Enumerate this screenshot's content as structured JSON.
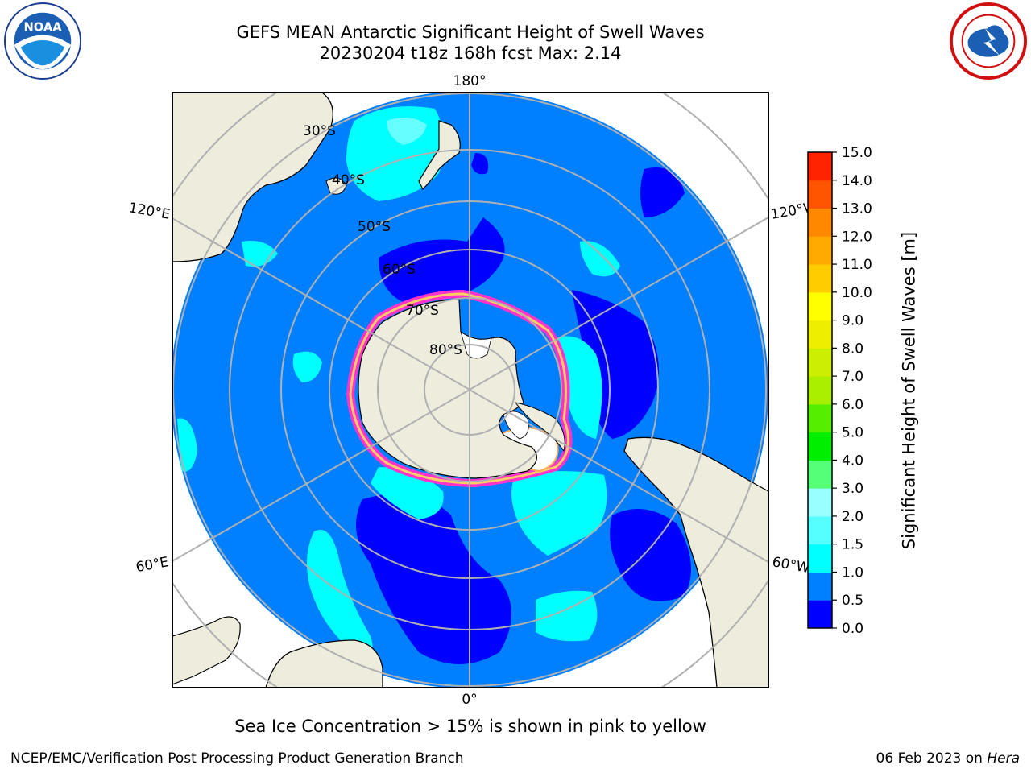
{
  "title": {
    "line1": "GEFS MEAN Antarctic Significant Height of Swell Waves",
    "line2": "20230204 t18z 168h fcst   Max: 2.14"
  },
  "logos": {
    "noaa": {
      "icon": "noaa-logo-icon",
      "text": "NOAA"
    },
    "nws": {
      "icon": "nws-logo-icon"
    }
  },
  "map": {
    "projection": "south-polar-stereographic",
    "longitude_labels": {
      "top": "180°",
      "upper_left": "120°E",
      "upper_right": "120°W",
      "lower_left": "60°E",
      "lower_right": "60°W",
      "bottom": "0°"
    },
    "latitude_labels": [
      "30°S",
      "40°S",
      "50°S",
      "60°S",
      "70°S",
      "80°S"
    ],
    "colors": {
      "land": "#eeecdc",
      "ocean_main": "#0080ff",
      "ocean_low": "#0000ff",
      "ocean_mid": "#00ffff",
      "ice_pink": "#ff33cc",
      "ice_yellow": "#ffff00",
      "grid": "#b0b0b0"
    }
  },
  "colorbar": {
    "label": "Significant Height of Swell Waves [m]",
    "ticks": [
      "0.0",
      "0.5",
      "1.0",
      "1.5",
      "2.0",
      "3.0",
      "4.0",
      "5.0",
      "6.0",
      "7.0",
      "8.0",
      "9.0",
      "10.0",
      "11.0",
      "12.0",
      "13.0",
      "14.0",
      "15.0"
    ],
    "colors": [
      "#0000ff",
      "#0080ff",
      "#00ffff",
      "#55ffff",
      "#99ffff",
      "#55ff77",
      "#00ee00",
      "#55ee00",
      "#aaee00",
      "#ccee00",
      "#eeee00",
      "#ffff00",
      "#ffcc00",
      "#ffaa00",
      "#ff8800",
      "#ff5500",
      "#ff2200"
    ]
  },
  "caption": "Sea Ice Concentration > 15% is shown in pink to yellow",
  "footer": {
    "left": "NCEP/EMC/Verification Post Processing Product Generation Branch",
    "right_prefix": "06 Feb 2023 on ",
    "right_system": "Hera"
  }
}
